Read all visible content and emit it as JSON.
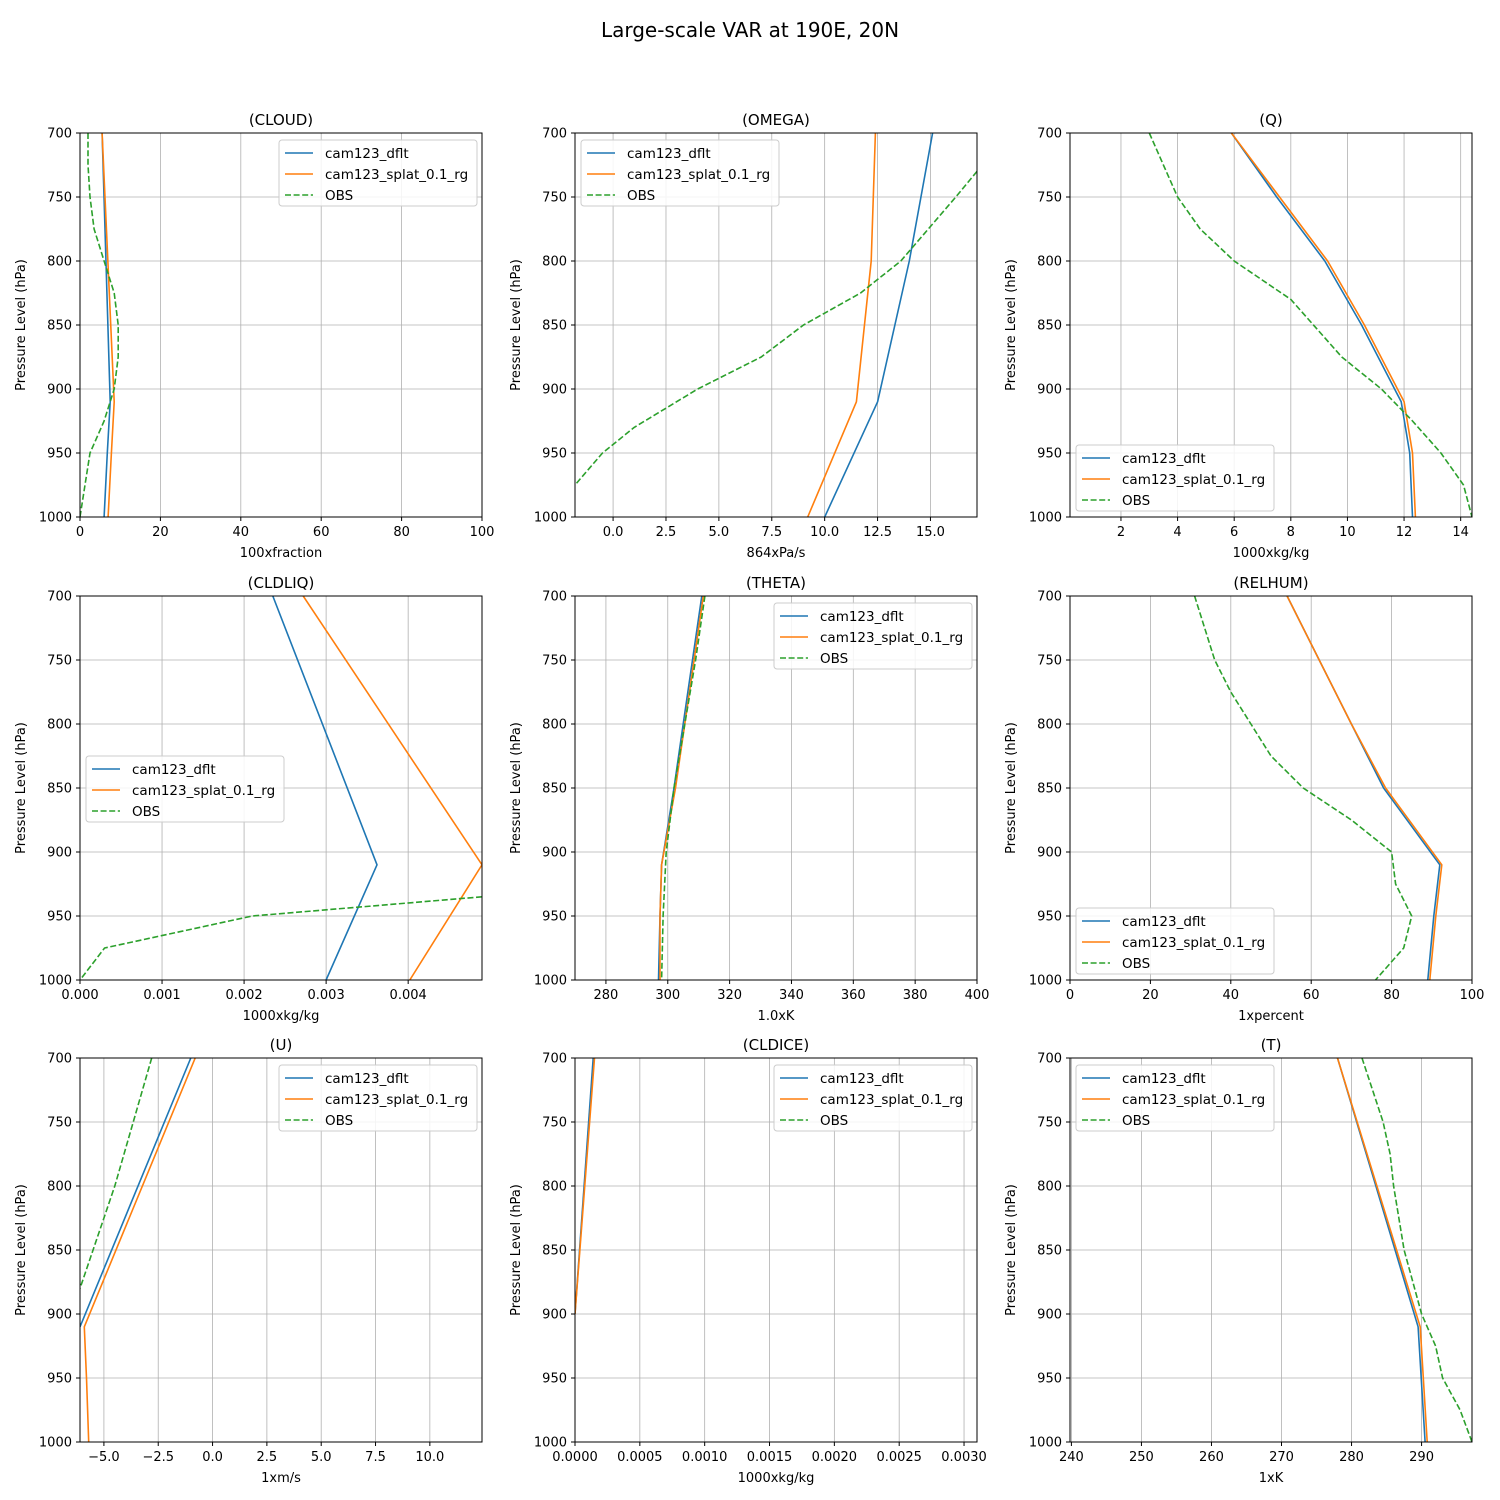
{
  "figure_title": "Large-scale VAR at 190E, 20N",
  "colors": {
    "dflt": "#1f77b4",
    "splat": "#ff7f0e",
    "obs": "#2ca02c",
    "grid": "#b0b0b0",
    "axis": "#000000"
  },
  "chart_data": [
    {
      "type": "line",
      "title": "(CLOUD)",
      "xlabel": "100xfraction",
      "ylabel": "Pressure Level (hPa)",
      "xlim": [
        0,
        100
      ],
      "ylim": [
        1000,
        700
      ],
      "xticks": [
        0,
        20,
        40,
        60,
        80,
        100
      ],
      "xtick_labels": [
        "0",
        "20",
        "40",
        "60",
        "80",
        "100"
      ],
      "yticks": [
        700,
        750,
        800,
        850,
        900,
        950,
        1000
      ],
      "legend": "upper-right",
      "series": [
        {
          "name": "cam123_dflt",
          "style": "solid",
          "color_key": "dflt",
          "x": [
            5.5,
            7.5,
            6.8,
            6.0
          ],
          "y": [
            700,
            910,
            950,
            1000
          ]
        },
        {
          "name": "cam123_splat_0.1_rg",
          "style": "solid",
          "color_key": "splat",
          "x": [
            5.5,
            8.5,
            7.8,
            7.0
          ],
          "y": [
            700,
            910,
            950,
            1000
          ]
        },
        {
          "name": "OBS",
          "style": "dashed",
          "color_key": "obs",
          "x": [
            2.0,
            2.0,
            2.5,
            3.5,
            6.0,
            8.5,
            9.5,
            9.5,
            8.5,
            6.0,
            2.5,
            0.0
          ],
          "y": [
            700,
            725,
            750,
            775,
            800,
            825,
            850,
            875,
            900,
            925,
            950,
            1000
          ]
        }
      ]
    },
    {
      "type": "line",
      "title": "(OMEGA)",
      "xlabel": "864xPa/s",
      "ylabel": "Pressure Level (hPa)",
      "xlim": [
        -1.8,
        17.2
      ],
      "ylim": [
        1000,
        700
      ],
      "xticks": [
        0,
        2.5,
        5,
        7.5,
        10,
        12.5,
        15
      ],
      "xtick_labels": [
        "0.0",
        "2.5",
        "5.0",
        "7.5",
        "10.0",
        "12.5",
        "15.0"
      ],
      "yticks": [
        700,
        750,
        800,
        850,
        900,
        950,
        1000
      ],
      "legend": "upper-left",
      "series": [
        {
          "name": "cam123_dflt",
          "style": "solid",
          "color_key": "dflt",
          "x": [
            15.1,
            14.0,
            12.5,
            10.0
          ],
          "y": [
            700,
            800,
            910,
            1000
          ]
        },
        {
          "name": "cam123_splat_0.1_rg",
          "style": "solid",
          "color_key": "splat",
          "x": [
            12.4,
            12.2,
            11.5,
            9.2
          ],
          "y": [
            700,
            800,
            910,
            1000
          ]
        },
        {
          "name": "OBS",
          "style": "dashed",
          "color_key": "obs",
          "x": [
            17.2,
            16.2,
            14.9,
            13.6,
            11.7,
            9.0,
            7.0,
            4.0,
            1.0,
            -0.5,
            -1.8
          ],
          "y": [
            730,
            750,
            775,
            800,
            825,
            850,
            875,
            900,
            930,
            950,
            975
          ]
        }
      ]
    },
    {
      "type": "line",
      "title": "(Q)",
      "xlabel": "1000xkg/kg",
      "ylabel": "Pressure Level (hPa)",
      "xlim": [
        0.2,
        14.4
      ],
      "ylim": [
        1000,
        700
      ],
      "xticks": [
        2,
        4,
        6,
        8,
        10,
        12,
        14
      ],
      "xtick_labels": [
        "2",
        "4",
        "6",
        "8",
        "10",
        "12",
        "14"
      ],
      "yticks": [
        700,
        750,
        800,
        850,
        900,
        950,
        1000
      ],
      "legend": "lower-left",
      "series": [
        {
          "name": "cam123_dflt",
          "style": "solid",
          "color_key": "dflt",
          "x": [
            5.9,
            7.5,
            9.2,
            10.5,
            11.9,
            12.2,
            12.3
          ],
          "y": [
            700,
            750,
            800,
            850,
            910,
            950,
            1000
          ]
        },
        {
          "name": "cam123_splat_0.1_rg",
          "style": "solid",
          "color_key": "splat",
          "x": [
            5.9,
            7.6,
            9.3,
            10.6,
            12.0,
            12.3,
            12.4
          ],
          "y": [
            700,
            750,
            800,
            850,
            910,
            950,
            1000
          ]
        },
        {
          "name": "OBS",
          "style": "dashed",
          "color_key": "obs",
          "x": [
            3.0,
            3.5,
            4.0,
            4.8,
            6.0,
            8.0,
            9.8,
            11.2,
            12.3,
            13.3,
            14.1,
            14.4
          ],
          "y": [
            700,
            725,
            750,
            775,
            800,
            830,
            875,
            900,
            925,
            950,
            975,
            1000
          ]
        }
      ]
    },
    {
      "type": "line",
      "title": "(CLDLIQ)",
      "xlabel": "1000xkg/kg",
      "ylabel": "Pressure Level (hPa)",
      "xlim": [
        0,
        0.0049
      ],
      "ylim": [
        1000,
        700
      ],
      "xticks": [
        0,
        0.001,
        0.002,
        0.003,
        0.004
      ],
      "xtick_labels": [
        "0.000",
        "0.001",
        "0.002",
        "0.003",
        "0.004"
      ],
      "yticks": [
        700,
        750,
        800,
        850,
        900,
        950,
        1000
      ],
      "legend": "center-left",
      "series": [
        {
          "name": "cam123_dflt",
          "style": "solid",
          "color_key": "dflt",
          "x": [
            0.00235,
            0.00362,
            0.003
          ],
          "y": [
            700,
            910,
            1000
          ]
        },
        {
          "name": "cam123_splat_0.1_rg",
          "style": "solid",
          "color_key": "splat",
          "x": [
            0.00272,
            0.0049,
            0.00402
          ],
          "y": [
            700,
            910,
            1000
          ]
        },
        {
          "name": "OBS",
          "style": "dashed",
          "color_key": "obs",
          "x": [
            0.0049,
            0.0021,
            0.0003,
            0.0
          ],
          "y": [
            935,
            950,
            975,
            1000
          ]
        }
      ]
    },
    {
      "type": "line",
      "title": "(THETA)",
      "xlabel": "1.0xK",
      "ylabel": "Pressure Level (hPa)",
      "xlim": [
        270,
        400
      ],
      "ylim": [
        1000,
        700
      ],
      "xticks": [
        280,
        300,
        320,
        340,
        360,
        380,
        400
      ],
      "xtick_labels": [
        "280",
        "300",
        "320",
        "340",
        "360",
        "380",
        "400"
      ],
      "yticks": [
        700,
        750,
        800,
        850,
        900,
        950,
        1000
      ],
      "legend": "upper-right",
      "series": [
        {
          "name": "cam123_dflt",
          "style": "solid",
          "color_key": "dflt",
          "x": [
            311.0,
            308.0,
            305.0,
            302.0,
            298.0,
            297.5,
            297.0
          ],
          "y": [
            700,
            750,
            800,
            850,
            910,
            950,
            1000
          ]
        },
        {
          "name": "cam123_splat_0.1_rg",
          "style": "solid",
          "color_key": "splat",
          "x": [
            311.5,
            308.5,
            305.5,
            302.5,
            298.0,
            297.5,
            297.5
          ],
          "y": [
            700,
            750,
            800,
            850,
            910,
            950,
            1000
          ]
        },
        {
          "name": "OBS",
          "style": "dashed",
          "color_key": "obs",
          "x": [
            312.0,
            309.0,
            305.5,
            302.0,
            299.5,
            298.5,
            298.0
          ],
          "y": [
            700,
            750,
            800,
            850,
            900,
            950,
            1000
          ]
        }
      ]
    },
    {
      "type": "line",
      "title": "(RELHUM)",
      "xlabel": "1xpercent",
      "ylabel": "Pressure Level (hPa)",
      "xlim": [
        0,
        100
      ],
      "ylim": [
        1000,
        700
      ],
      "xticks": [
        0,
        20,
        40,
        60,
        80,
        100
      ],
      "xtick_labels": [
        "0",
        "20",
        "40",
        "60",
        "80",
        "100"
      ],
      "yticks": [
        700,
        750,
        800,
        850,
        900,
        950,
        1000
      ],
      "legend": "lower-left",
      "series": [
        {
          "name": "cam123_dflt",
          "style": "solid",
          "color_key": "dflt",
          "x": [
            54.0,
            62.0,
            70.0,
            78.0,
            92.0,
            90.5,
            89.0
          ],
          "y": [
            700,
            750,
            800,
            850,
            910,
            950,
            1000
          ]
        },
        {
          "name": "cam123_splat_0.1_rg",
          "style": "solid",
          "color_key": "splat",
          "x": [
            54.0,
            62.0,
            70.0,
            78.5,
            92.5,
            91.0,
            89.5
          ],
          "y": [
            700,
            750,
            800,
            850,
            910,
            950,
            1000
          ]
        },
        {
          "name": "OBS",
          "style": "dashed",
          "color_key": "obs",
          "x": [
            31.0,
            36.0,
            40.0,
            45.0,
            50.0,
            58.0,
            70.0,
            80.0,
            81.0,
            85.0,
            83.0,
            76.0
          ],
          "y": [
            700,
            750,
            775,
            800,
            825,
            850,
            875,
            900,
            925,
            950,
            975,
            1000
          ]
        }
      ]
    },
    {
      "type": "line",
      "title": "(U)",
      "xlabel": "1xm/s",
      "ylabel": "Pressure Level (hPa)",
      "xlim": [
        -6.1,
        12.4
      ],
      "ylim": [
        1000,
        700
      ],
      "xticks": [
        -5,
        -2.5,
        0,
        2.5,
        5,
        7.5,
        10
      ],
      "xtick_labels": [
        "−5.0",
        "−2.5",
        "0.0",
        "2.5",
        "5.0",
        "7.5",
        "10.0"
      ],
      "yticks": [
        700,
        750,
        800,
        850,
        900,
        950,
        1000
      ],
      "legend": "upper-right",
      "series": [
        {
          "name": "cam123_dflt",
          "style": "solid",
          "color_key": "dflt",
          "x": [
            -1.0,
            -6.1
          ],
          "y": [
            700,
            910
          ]
        },
        {
          "name": "cam123_splat_0.1_rg",
          "style": "solid",
          "color_key": "splat",
          "x": [
            -0.8,
            -5.9,
            -5.8,
            -5.7
          ],
          "y": [
            700,
            910,
            950,
            1000
          ]
        },
        {
          "name": "OBS",
          "style": "dashed",
          "color_key": "obs",
          "x": [
            -2.8,
            -4.5,
            -6.1
          ],
          "y": [
            700,
            800,
            880
          ]
        }
      ]
    },
    {
      "type": "line",
      "title": "(CLDICE)",
      "xlabel": "1000xkg/kg",
      "ylabel": "Pressure Level (hPa)",
      "xlim": [
        0,
        0.0031
      ],
      "ylim": [
        1000,
        700
      ],
      "xticks": [
        0,
        0.0005,
        0.001,
        0.0015,
        0.002,
        0.0025,
        0.003
      ],
      "xtick_labels": [
        "0.0000",
        "0.0005",
        "0.0010",
        "0.0015",
        "0.0020",
        "0.0025",
        "0.0030"
      ],
      "yticks": [
        700,
        750,
        800,
        850,
        900,
        950,
        1000
      ],
      "legend": "upper-right",
      "series": [
        {
          "name": "cam123_dflt",
          "style": "solid",
          "color_key": "dflt",
          "x": [
            0.00014,
            0.0
          ],
          "y": [
            700,
            900
          ]
        },
        {
          "name": "cam123_splat_0.1_rg",
          "style": "solid",
          "color_key": "splat",
          "x": [
            0.00015,
            0.0
          ],
          "y": [
            700,
            900
          ]
        },
        {
          "name": "OBS",
          "style": "dashed",
          "color_key": "obs",
          "x": [],
          "y": []
        }
      ]
    },
    {
      "type": "line",
      "title": "(T)",
      "xlabel": "1xK",
      "ylabel": "Pressure Level (hPa)",
      "xlim": [
        239.8,
        297.2
      ],
      "ylim": [
        1000,
        700
      ],
      "xticks": [
        240,
        250,
        260,
        270,
        280,
        290
      ],
      "xtick_labels": [
        "240",
        "250",
        "260",
        "270",
        "280",
        "290"
      ],
      "yticks": [
        700,
        750,
        800,
        850,
        900,
        950,
        1000
      ],
      "legend": "upper-left",
      "series": [
        {
          "name": "cam123_dflt",
          "style": "solid",
          "color_key": "dflt",
          "x": [
            278.0,
            289.5,
            290.5
          ],
          "y": [
            700,
            910,
            1000
          ]
        },
        {
          "name": "cam123_splat_0.1_rg",
          "style": "solid",
          "color_key": "splat",
          "x": [
            278.0,
            289.8,
            290.8
          ],
          "y": [
            700,
            910,
            1000
          ]
        },
        {
          "name": "OBS",
          "style": "dashed",
          "color_key": "obs",
          "x": [
            281.5,
            284.5,
            285.5,
            286.0,
            287.5,
            290.0,
            292.0,
            293.0,
            295.5,
            297.2
          ],
          "y": [
            700,
            750,
            775,
            800,
            850,
            900,
            925,
            950,
            975,
            1000
          ]
        }
      ]
    }
  ]
}
